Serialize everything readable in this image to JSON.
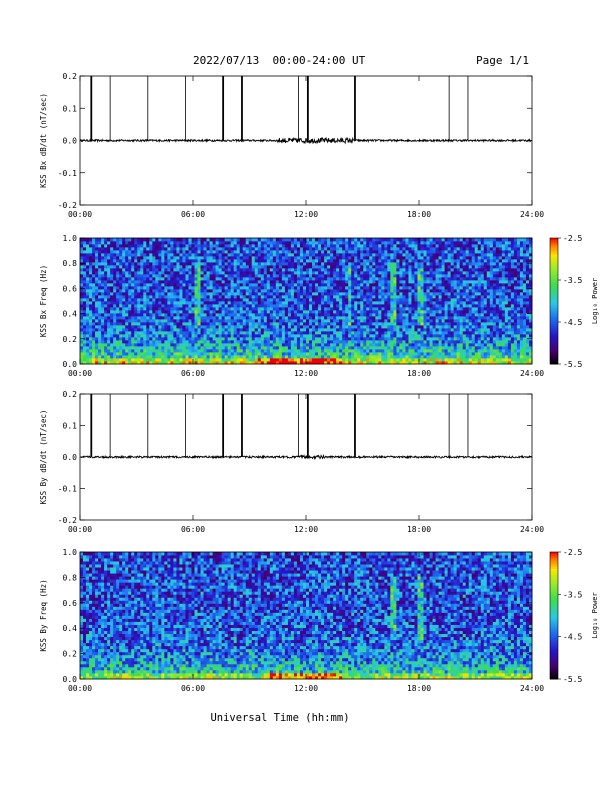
{
  "header": {
    "title": "2022/07/13  00:00-24:00 UT",
    "page": "Page 1/1"
  },
  "xlabel": "Universal Time (hh:mm)",
  "chart_data": [
    {
      "type": "line",
      "ylabel": "KSS Bx dB/dt (nT/sec)",
      "xlim": [
        0,
        24
      ],
      "ylim": [
        -0.2,
        0.2
      ],
      "yticks": [
        "-0.2",
        "-0.1",
        "0.0",
        "0.1",
        "0.2"
      ],
      "xticks": [
        "00:00",
        "06:00",
        "12:00",
        "18:00",
        "24:00"
      ],
      "series": [
        {
          "baseline": 0.0,
          "noise_amplitude": 0.003,
          "enhanced_noise_hours": [
            10.5,
            14.5
          ],
          "enhanced_amplitude": 0.008
        }
      ],
      "spikes": [
        {
          "t": 0.6,
          "heavy": true
        },
        {
          "t": 1.6,
          "heavy": false
        },
        {
          "t": 3.6,
          "heavy": false
        },
        {
          "t": 5.6,
          "heavy": false
        },
        {
          "t": 7.6,
          "heavy": true
        },
        {
          "t": 8.6,
          "heavy": true
        },
        {
          "t": 11.6,
          "heavy": false
        },
        {
          "t": 12.1,
          "heavy": true
        },
        {
          "t": 14.6,
          "heavy": true
        },
        {
          "t": 19.6,
          "heavy": false
        },
        {
          "t": 20.6,
          "heavy": false
        }
      ],
      "spike_top": 0.2
    },
    {
      "type": "heatmap",
      "ylabel": "KSS Bx Freq (Hz)",
      "xlim": [
        0,
        24
      ],
      "ylim": [
        0,
        1.0
      ],
      "yticks": [
        "0.0",
        "0.2",
        "0.4",
        "0.6",
        "0.8",
        "1.0"
      ],
      "xticks": [
        "00:00",
        "06:00",
        "12:00",
        "18:00",
        "24:00"
      ],
      "colorbar": {
        "label": "Log₁₀ Power",
        "ticks": [
          "-2.5",
          "-3.5",
          "-4.5",
          "-5.5"
        ],
        "min": -5.5,
        "max": -2.5
      },
      "mean_power_low": -3.4,
      "mean_power_high": -4.6,
      "hot_band_hours": [
        9.5,
        14.0
      ],
      "vertical_streaks_hours": [
        6.3,
        14.3,
        16.6,
        18.1
      ]
    },
    {
      "type": "line",
      "ylabel": "KSS By dB/dt (nT/sec)",
      "xlim": [
        0,
        24
      ],
      "ylim": [
        -0.2,
        0.2
      ],
      "yticks": [
        "-0.2",
        "-0.1",
        "0.0",
        "0.1",
        "0.2"
      ],
      "xticks": [
        "00:00",
        "06:00",
        "12:00",
        "18:00",
        "24:00"
      ],
      "series": [
        {
          "baseline": 0.0,
          "noise_amplitude": 0.003,
          "enhanced_noise_hours": [
            11.5,
            13.0
          ],
          "enhanced_amplitude": 0.005
        }
      ],
      "spikes": [
        {
          "t": 0.6,
          "heavy": true
        },
        {
          "t": 1.6,
          "heavy": false
        },
        {
          "t": 3.6,
          "heavy": false
        },
        {
          "t": 5.6,
          "heavy": false
        },
        {
          "t": 7.6,
          "heavy": true
        },
        {
          "t": 8.6,
          "heavy": true
        },
        {
          "t": 11.6,
          "heavy": false
        },
        {
          "t": 12.1,
          "heavy": true
        },
        {
          "t": 14.6,
          "heavy": true
        },
        {
          "t": 19.6,
          "heavy": false
        },
        {
          "t": 20.6,
          "heavy": false
        }
      ],
      "spike_top": 0.2
    },
    {
      "type": "heatmap",
      "ylabel": "KSS By Freq (Hz)",
      "xlim": [
        0,
        24
      ],
      "ylim": [
        0,
        1.0
      ],
      "yticks": [
        "0.0",
        "0.2",
        "0.4",
        "0.6",
        "0.8",
        "1.0"
      ],
      "xticks": [
        "00:00",
        "06:00",
        "12:00",
        "18:00",
        "24:00"
      ],
      "colorbar": {
        "label": "Log₁₀ Power",
        "ticks": [
          "-2.5",
          "-3.5",
          "-4.5",
          "-5.5"
        ],
        "min": -5.5,
        "max": -2.5
      },
      "mean_power_low": -3.6,
      "mean_power_high": -4.6,
      "hot_band_hours": [
        10.0,
        14.0
      ],
      "vertical_streaks_hours": [
        16.6,
        18.1
      ]
    }
  ]
}
